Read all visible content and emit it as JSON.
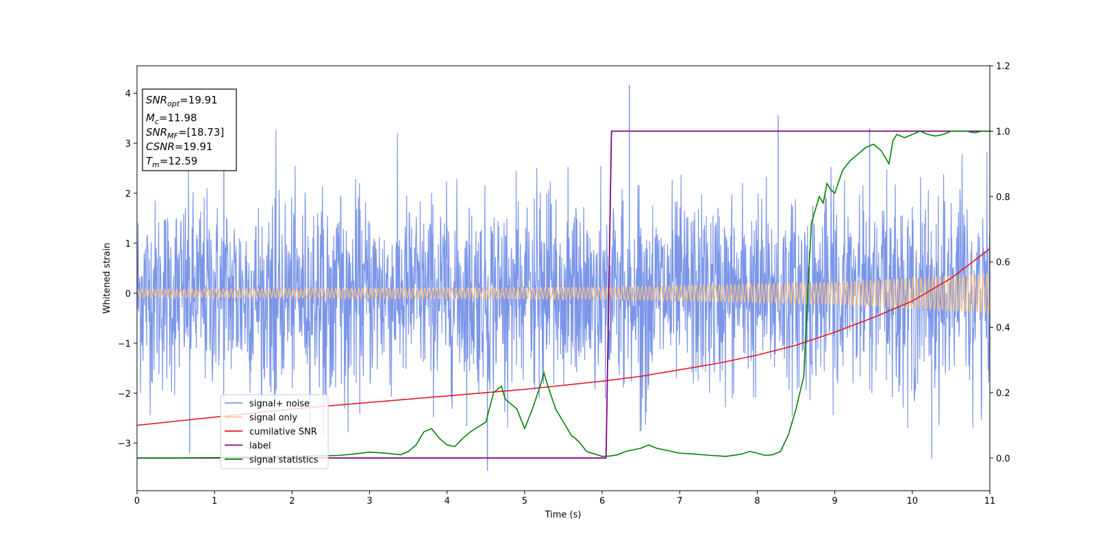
{
  "chart_data": {
    "type": "line",
    "xlabel": "Time (s)",
    "ylabel": "Whitened strain",
    "xlim": [
      0,
      11
    ],
    "ylim_left": [
      -3.95,
      4.55
    ],
    "ylim_right": [
      -0.1,
      1.2
    ],
    "x_ticks": [
      "0",
      "1",
      "2",
      "3",
      "4",
      "5",
      "6",
      "7",
      "8",
      "9",
      "10",
      "11"
    ],
    "y_ticks_left": [
      "−3",
      "−2",
      "−1",
      "0",
      "1",
      "2",
      "3",
      "4"
    ],
    "y_ticks_right": [
      "0.0",
      "0.2",
      "0.4",
      "0.6",
      "0.8",
      "1.0",
      "1.2"
    ],
    "grid": false,
    "legend_placement": "lower-left",
    "annotation": [
      {
        "base": "SNR",
        "sub": "opt",
        "rest": "=19.91"
      },
      {
        "base": "M",
        "sub": "c",
        "rest": "=11.98"
      },
      {
        "base": "SNR",
        "sub": "MF",
        "rest": "=[18.73]"
      },
      {
        "base": "CSNR",
        "sub": "",
        "rest": "=19.91"
      },
      {
        "base": "T",
        "sub": "m",
        "rest": "=12.59"
      }
    ],
    "series": [
      {
        "name": "signal+ noise",
        "axis": "left",
        "color": "#7b96e8",
        "noise_std": 0.95,
        "max": 4.17,
        "min": -3.55
      },
      {
        "name": "signal only",
        "axis": "left",
        "color": "#f5c08a",
        "amplitude": [
          [
            0,
            0.08
          ],
          [
            6,
            0.12
          ],
          [
            9,
            0.22
          ],
          [
            11,
            0.4
          ]
        ],
        "cycles": [
          [
            0,
            0
          ],
          [
            11,
            220
          ]
        ]
      },
      {
        "name": "cumilative SNR",
        "axis": "right",
        "color": "#e8141c",
        "x": [
          0,
          1,
          2,
          3,
          4,
          5,
          6,
          6.5,
          7,
          7.5,
          8,
          8.5,
          9,
          9.5,
          10,
          10.5,
          11
        ],
        "y": [
          0.1,
          0.125,
          0.15,
          0.17,
          0.19,
          0.21,
          0.235,
          0.25,
          0.27,
          0.29,
          0.315,
          0.345,
          0.385,
          0.43,
          0.48,
          0.55,
          0.64
        ]
      },
      {
        "name": "label",
        "axis": "right",
        "color": "#800080",
        "x": [
          0,
          6.05,
          6.12,
          11
        ],
        "y": [
          0,
          0,
          1,
          1
        ]
      },
      {
        "name": "signal statistics",
        "axis": "right",
        "color": "#008000",
        "x": [
          0,
          0.5,
          1,
          1.5,
          2,
          2.3,
          2.6,
          2.8,
          3,
          3.2,
          3.4,
          3.5,
          3.6,
          3.7,
          3.8,
          3.9,
          4.0,
          4.1,
          4.2,
          4.3,
          4.4,
          4.5,
          4.6,
          4.7,
          4.75,
          4.8,
          4.9,
          5.0,
          5.1,
          5.2,
          5.25,
          5.3,
          5.4,
          5.5,
          5.6,
          5.7,
          5.8,
          6.0,
          6.1,
          6.2,
          6.3,
          6.4,
          6.5,
          6.6,
          6.7,
          6.8,
          7.0,
          7.2,
          7.4,
          7.6,
          7.8,
          7.9,
          8.0,
          8.1,
          8.2,
          8.3,
          8.4,
          8.5,
          8.6,
          8.65,
          8.7,
          8.75,
          8.8,
          8.85,
          8.9,
          8.95,
          9.0,
          9.1,
          9.2,
          9.3,
          9.4,
          9.5,
          9.6,
          9.7,
          9.75,
          9.8,
          9.9,
          10.0,
          10.1,
          10.2,
          10.3,
          10.4,
          10.5,
          10.6,
          10.7,
          10.8,
          10.9,
          11.0
        ],
        "y": [
          0,
          0,
          0.001,
          0.003,
          0.005,
          0.006,
          0.008,
          0.012,
          0.018,
          0.015,
          0.01,
          0.02,
          0.04,
          0.08,
          0.09,
          0.06,
          0.04,
          0.035,
          0.06,
          0.08,
          0.095,
          0.11,
          0.2,
          0.22,
          0.18,
          0.17,
          0.15,
          0.09,
          0.15,
          0.22,
          0.26,
          0.22,
          0.15,
          0.11,
          0.07,
          0.05,
          0.02,
          0.005,
          0.006,
          0.01,
          0.02,
          0.025,
          0.03,
          0.04,
          0.03,
          0.025,
          0.015,
          0.012,
          0.008,
          0.005,
          0.012,
          0.02,
          0.015,
          0.008,
          0.01,
          0.02,
          0.07,
          0.15,
          0.25,
          0.5,
          0.72,
          0.76,
          0.8,
          0.78,
          0.84,
          0.82,
          0.81,
          0.88,
          0.91,
          0.93,
          0.95,
          0.96,
          0.94,
          0.9,
          0.97,
          0.99,
          0.98,
          0.99,
          1.0,
          0.99,
          0.985,
          0.99,
          1.0,
          1.0,
          1.0,
          0.995,
          1.0,
          1.0
        ]
      }
    ]
  }
}
